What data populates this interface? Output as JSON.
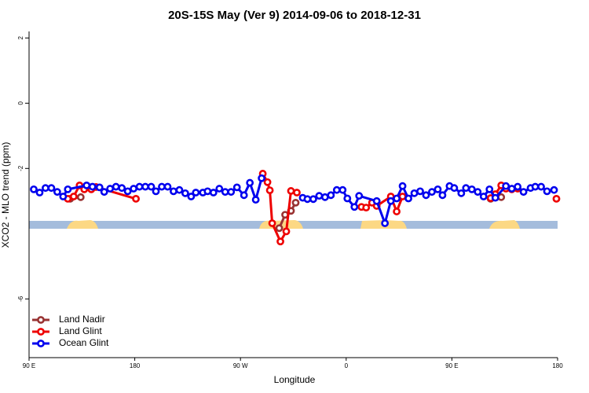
{
  "chart_data": {
    "type": "line",
    "title": "20S-15S May (Ver 9)   2014-09-06 to 2018-12-31",
    "xlabel": "Longitude",
    "ylabel": "XCO2 - MLO trend (ppm)",
    "xlim": [
      90,
      540
    ],
    "xticks": [
      {
        "value": 90,
        "label": "90 E"
      },
      180,
      {
        "value": 270,
        "label": "90 W"
      },
      {
        "value": 360,
        "label": "0"
      },
      {
        "value": 450,
        "label": "90 E"
      },
      {
        "value": 540,
        "label": "180"
      }
    ],
    "ylim": [
      -7.8,
      2.2
    ],
    "yticks": [
      2,
      0,
      -2,
      -6
    ],
    "legend": "lower left",
    "series": [
      {
        "name": "Land Nadir",
        "color": "#993333",
        "x": [
          125,
          134,
          null,
          303,
          308,
          313,
          317,
          null,
          483,
          492
        ],
        "values": [
          -2.93,
          -2.88,
          null,
          -3.83,
          -3.42,
          -3.3,
          -3.05,
          null,
          -2.93,
          -2.88
        ]
      },
      {
        "name": "Land Glint",
        "color": "#ee0000",
        "x": [
          123,
          128,
          133,
          137,
          143,
          147,
          181,
          null,
          289,
          293,
          295,
          297,
          304,
          309,
          313,
          318,
          null,
          373,
          377,
          382,
          386,
          398,
          403,
          408,
          null,
          483,
          487,
          492,
          496,
          501,
          506,
          null,
          539
        ],
        "values": [
          -2.93,
          -2.86,
          -2.52,
          -2.64,
          -2.64,
          -2.57,
          -2.93,
          null,
          -2.16,
          -2.42,
          -2.67,
          -3.68,
          -4.24,
          -3.93,
          -2.69,
          -2.74,
          null,
          -3.18,
          -3.2,
          -3.05,
          -3.15,
          -2.86,
          -3.32,
          -2.86,
          null,
          -2.91,
          -2.79,
          -2.52,
          -2.62,
          -2.64,
          -2.62,
          null,
          -2.93
        ]
      },
      {
        "name": "Ocean Glint",
        "color": "#0000ee",
        "x": [
          94,
          99,
          104,
          109,
          114,
          119,
          123,
          139,
          144,
          150,
          154,
          159,
          164,
          169,
          174,
          179,
          184,
          189,
          194,
          198,
          203,
          208,
          213,
          218,
          223,
          228,
          232,
          238,
          242,
          247,
          252,
          257,
          262,
          267,
          273,
          278,
          283,
          288,
          null,
          323,
          327,
          332,
          337,
          342,
          347,
          352,
          357,
          361,
          367,
          371,
          386,
          393,
          398,
          403,
          408,
          413,
          418,
          423,
          428,
          433,
          438,
          442,
          448,
          452,
          458,
          462,
          467,
          472,
          477,
          482,
          487,
          496,
          501,
          506,
          511,
          517,
          521,
          526,
          531,
          537
        ],
        "values": [
          -2.64,
          -2.74,
          -2.6,
          -2.6,
          -2.72,
          -2.86,
          -2.64,
          -2.52,
          -2.56,
          -2.58,
          -2.72,
          -2.62,
          -2.56,
          -2.6,
          -2.7,
          -2.62,
          -2.56,
          -2.56,
          -2.56,
          -2.7,
          -2.56,
          -2.56,
          -2.7,
          -2.66,
          -2.76,
          -2.86,
          -2.74,
          -2.74,
          -2.7,
          -2.74,
          -2.62,
          -2.72,
          -2.72,
          -2.58,
          -2.82,
          -2.44,
          -2.96,
          -2.3,
          null,
          -2.9,
          -2.94,
          -2.94,
          -2.84,
          -2.88,
          -2.82,
          -2.66,
          -2.66,
          -2.92,
          -3.18,
          -2.84,
          -3.0,
          -3.68,
          -3.0,
          -2.92,
          -2.54,
          -2.92,
          -2.76,
          -2.7,
          -2.82,
          -2.72,
          -2.64,
          -2.82,
          -2.54,
          -2.6,
          -2.76,
          -2.6,
          -2.64,
          -2.72,
          -2.86,
          -2.64,
          -2.9,
          -2.54,
          -2.62,
          -2.56,
          -2.72,
          -2.6,
          -2.56,
          -2.56,
          -2.7,
          -2.66
        ]
      }
    ]
  }
}
